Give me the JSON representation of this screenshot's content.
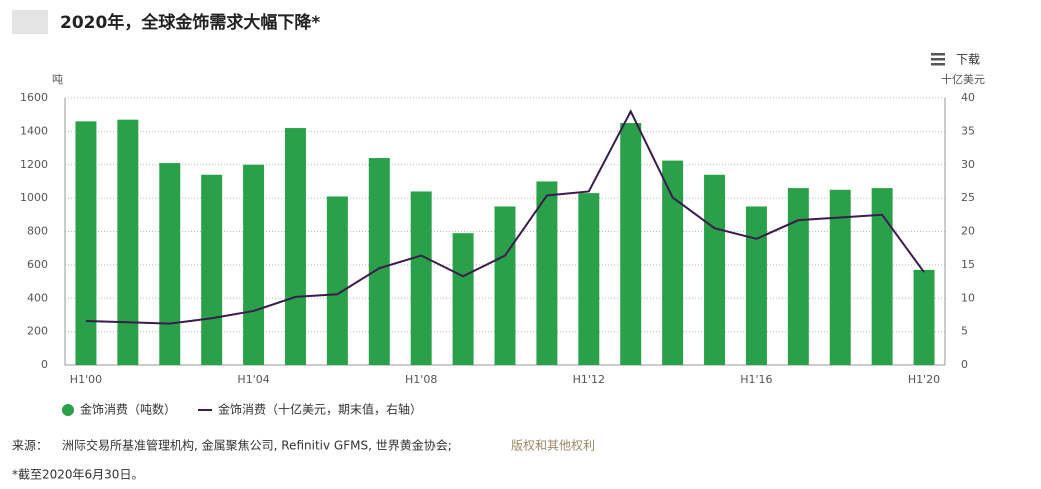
{
  "chart_data": {
    "type": "bar-line",
    "title": "2020年，全球金饰需求大幅下降*",
    "download": "下载",
    "y_unit": "吨",
    "y2_unit": "十亿美元",
    "categories": [
      "H1'00",
      null,
      null,
      null,
      "H1'04",
      null,
      null,
      null,
      "H1'08",
      null,
      null,
      null,
      "H1'12",
      null,
      null,
      null,
      "H1'16",
      null,
      null,
      null,
      "H1'20"
    ],
    "series": [
      {
        "name": "金饰消费（吨数）",
        "color": "#2aa04a",
        "type": "bar",
        "values": [
          1460,
          1470,
          1210,
          1140,
          1200,
          1420,
          1010,
          1240,
          1040,
          790,
          950,
          1100,
          1030,
          1450,
          1225,
          1140,
          950,
          1060,
          1050,
          1060,
          570
        ]
      },
      {
        "name": "金饰消费（十亿美元，期末值，右轴）",
        "color": "#3a1d4c",
        "type": "line",
        "axis": "y2",
        "values": [
          6.6,
          6.4,
          6.2,
          7.0,
          8.1,
          10.2,
          10.6,
          14.5,
          16.4,
          13.3,
          16.4,
          25.4,
          26.0,
          38.0,
          25.1,
          20.5,
          18.9,
          21.7,
          22.1,
          22.5,
          13.9
        ]
      }
    ],
    "ylim": [
      0,
      1600
    ],
    "yticks": [
      0,
      200,
      400,
      600,
      800,
      1000,
      1200,
      1400,
      1600
    ],
    "y2lim": [
      0,
      40
    ],
    "y2ticks": [
      0,
      5,
      10,
      15,
      20,
      25,
      30,
      35,
      40
    ],
    "grid": true,
    "source_label": "来源：",
    "source": "洲际交易所基准管理机构, 金属聚焦公司, Refinitiv GFMS, 世界黄金协会;",
    "source_link": "版权和其他权利",
    "footnote": "*截至2020年6月30日。"
  }
}
